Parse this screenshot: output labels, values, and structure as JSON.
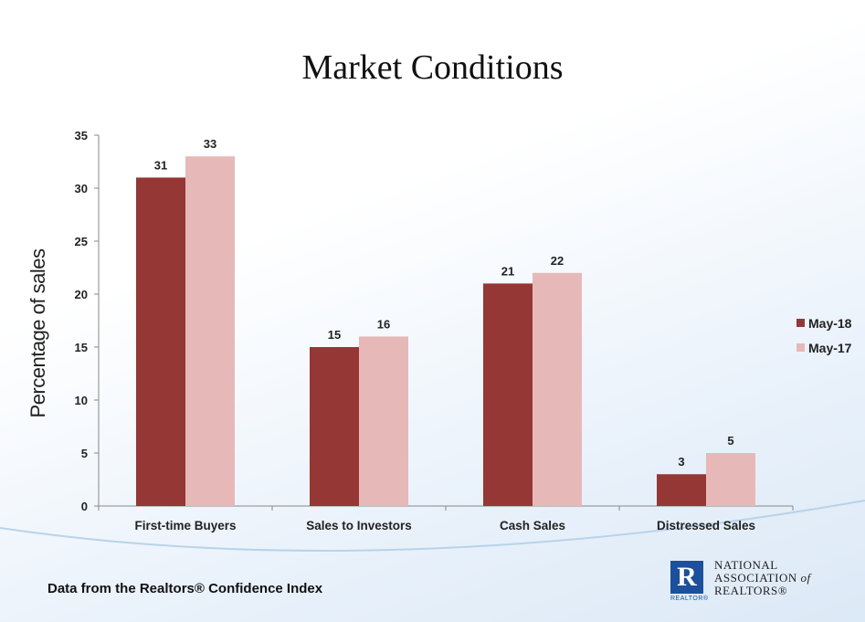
{
  "slide": {
    "title": "Market Conditions",
    "source": "Data from the Realtors® Confidence Index"
  },
  "logo": {
    "mark": "R",
    "sub": "REALTOR®",
    "line1": "NATIONAL",
    "line2": "ASSOCIATION",
    "line2_of": "of",
    "line3": "REALTORS®"
  },
  "chart_data": {
    "type": "bar",
    "title": "Market Conditions",
    "xlabel": "",
    "ylabel": "Percentage of  sales",
    "categories": [
      "First-time Buyers",
      "Sales to Investors",
      "Cash Sales",
      "Distressed Sales"
    ],
    "series": [
      {
        "name": "May-18",
        "color": "#953735",
        "values": [
          31,
          15,
          21,
          3
        ]
      },
      {
        "name": "May-17",
        "color": "#e6b9b8",
        "values": [
          33,
          16,
          22,
          5
        ]
      }
    ],
    "ylim": [
      0,
      35
    ],
    "yticks": [
      0,
      5,
      10,
      15,
      20,
      25,
      30,
      35
    ],
    "grid": false,
    "legend": "right",
    "data_labels": true
  }
}
